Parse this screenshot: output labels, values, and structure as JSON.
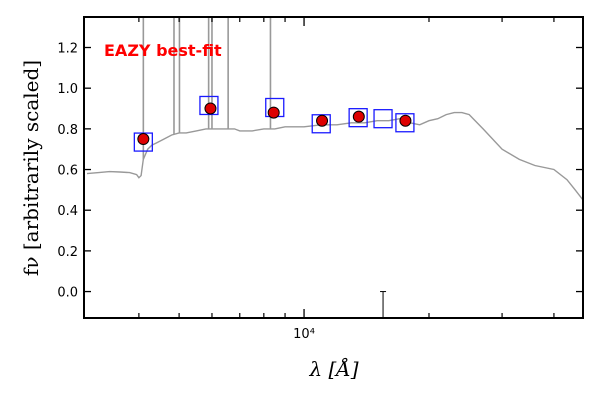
{
  "chart_data": {
    "type": "scatter",
    "title": "",
    "annotation": "EAZY best-fit",
    "annotation_color": "#ff0000",
    "xlabel": "λ [Å]",
    "ylabel": "fν [arbitrarily scaled]",
    "x_scale": "log",
    "xlim": [
      2950,
      47000
    ],
    "ylim": [
      -0.13,
      1.35
    ],
    "x_tick_label": "10⁴",
    "y_ticks": [
      0.0,
      0.2,
      0.4,
      0.6,
      0.8,
      1.0,
      1.2
    ],
    "y_tick_labels": [
      "0.0",
      "0.2",
      "0.4",
      "0.6",
      "0.8",
      "1.0",
      "1.2"
    ],
    "grid": false,
    "colors": {
      "template": "#999999",
      "model": "#1a1aff",
      "observed_fill": "#dd0000",
      "observed_edge": "#000000"
    },
    "series": [
      {
        "kind": "template",
        "x": [
          3000,
          3200,
          3400,
          3600,
          3800,
          3950,
          4000,
          4050,
          4100,
          4200,
          4300,
          4400,
          4600,
          4800,
          5000,
          5200,
          5500,
          5800,
          6000,
          6300,
          6500,
          6800,
          7000,
          7500,
          8000,
          8500,
          9000,
          10000,
          11000,
          12000,
          13000,
          14000,
          15000,
          16000,
          17000,
          18000,
          19000,
          20000,
          21000,
          22000,
          23000,
          24000,
          25000,
          27000,
          30000,
          33000,
          36000,
          40000,
          43000,
          45000,
          47000
        ],
        "y": [
          0.58,
          0.585,
          0.59,
          0.588,
          0.585,
          0.575,
          0.56,
          0.57,
          0.65,
          0.7,
          0.72,
          0.73,
          0.75,
          0.77,
          0.78,
          0.78,
          0.79,
          0.8,
          0.8,
          0.8,
          0.8,
          0.8,
          0.79,
          0.79,
          0.8,
          0.8,
          0.81,
          0.81,
          0.82,
          0.82,
          0.83,
          0.83,
          0.84,
          0.84,
          0.85,
          0.83,
          0.82,
          0.84,
          0.85,
          0.87,
          0.88,
          0.88,
          0.87,
          0.8,
          0.7,
          0.65,
          0.62,
          0.6,
          0.55,
          0.5,
          0.45
        ]
      },
      {
        "kind": "emission_lines",
        "x": [
          4100,
          4860,
          5010,
          5890,
          6000,
          6563,
          8300
        ],
        "y": [
          1.35,
          1.35,
          1.35,
          1.35,
          1.35,
          1.35,
          1.35
        ]
      },
      {
        "kind": "model",
        "x": [
          4100,
          5900,
          8500,
          11000,
          13500,
          15500,
          17500
        ],
        "y": [
          0.735,
          0.915,
          0.905,
          0.825,
          0.855,
          0.85,
          0.83
        ]
      },
      {
        "kind": "observed",
        "x": [
          4100,
          5950,
          8450,
          11050,
          13550,
          17550
        ],
        "y": [
          0.75,
          0.9,
          0.88,
          0.84,
          0.86,
          0.84
        ]
      },
      {
        "kind": "upper_limit",
        "x": [
          15500
        ],
        "y": [
          0.0
        ]
      }
    ]
  }
}
